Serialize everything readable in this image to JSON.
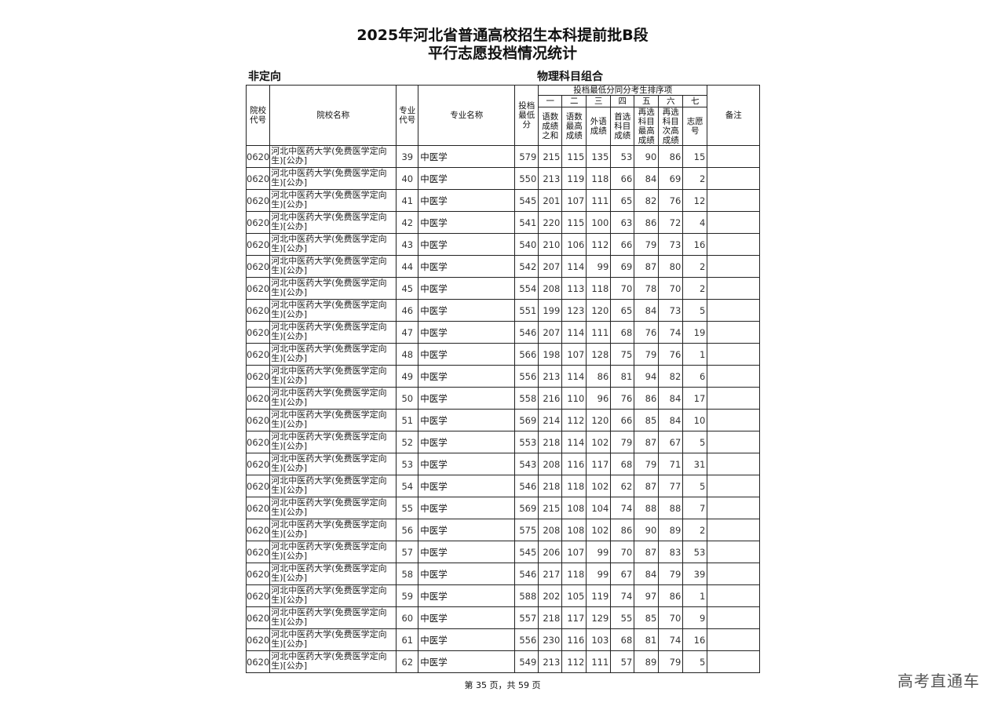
{
  "title_line1": "2025年河北省普通高校招生本科提前批B段",
  "title_line2": "平行志愿投档情况统计",
  "category": "非定向",
  "subject_group": "物理科目组合",
  "headers": {
    "school_code": "院校代号",
    "school_name": "院校名称",
    "major_code": "专业代号",
    "major_name": "专业名称",
    "min_score": "投档最低分",
    "tiebreak_group": "投档最低分同分考生排序项",
    "tiebreak_numbers": [
      "一",
      "二",
      "三",
      "四",
      "五",
      "六",
      "七"
    ],
    "tiebreak_items": [
      "语数成绩之和",
      "语数最高成绩",
      "外语成绩",
      "首选科目成绩",
      "再选科目最高成绩",
      "再选科目次高成绩",
      "志愿号"
    ],
    "remarks": "备注"
  },
  "rows": [
    {
      "school_code": "0620",
      "school_name": "河北中医药大学(免费医学定向生)[公办]",
      "major_code": "39",
      "major_name": "中医学",
      "min_score": "579",
      "t": [
        "215",
        "115",
        "135",
        "53",
        "90",
        "86",
        "15"
      ]
    },
    {
      "school_code": "0620",
      "school_name": "河北中医药大学(免费医学定向生)[公办]",
      "major_code": "40",
      "major_name": "中医学",
      "min_score": "550",
      "t": [
        "213",
        "119",
        "118",
        "66",
        "84",
        "69",
        "2"
      ]
    },
    {
      "school_code": "0620",
      "school_name": "河北中医药大学(免费医学定向生)[公办]",
      "major_code": "41",
      "major_name": "中医学",
      "min_score": "545",
      "t": [
        "201",
        "107",
        "111",
        "65",
        "82",
        "76",
        "12"
      ]
    },
    {
      "school_code": "0620",
      "school_name": "河北中医药大学(免费医学定向生)[公办]",
      "major_code": "42",
      "major_name": "中医学",
      "min_score": "541",
      "t": [
        "220",
        "115",
        "100",
        "63",
        "86",
        "72",
        "4"
      ]
    },
    {
      "school_code": "0620",
      "school_name": "河北中医药大学(免费医学定向生)[公办]",
      "major_code": "43",
      "major_name": "中医学",
      "min_score": "540",
      "t": [
        "210",
        "106",
        "112",
        "66",
        "79",
        "73",
        "16"
      ]
    },
    {
      "school_code": "0620",
      "school_name": "河北中医药大学(免费医学定向生)[公办]",
      "major_code": "44",
      "major_name": "中医学",
      "min_score": "542",
      "t": [
        "207",
        "114",
        "99",
        "69",
        "87",
        "80",
        "2"
      ]
    },
    {
      "school_code": "0620",
      "school_name": "河北中医药大学(免费医学定向生)[公办]",
      "major_code": "45",
      "major_name": "中医学",
      "min_score": "554",
      "t": [
        "208",
        "113",
        "118",
        "70",
        "78",
        "70",
        "2"
      ]
    },
    {
      "school_code": "0620",
      "school_name": "河北中医药大学(免费医学定向生)[公办]",
      "major_code": "46",
      "major_name": "中医学",
      "min_score": "551",
      "t": [
        "199",
        "123",
        "120",
        "65",
        "84",
        "73",
        "5"
      ]
    },
    {
      "school_code": "0620",
      "school_name": "河北中医药大学(免费医学定向生)[公办]",
      "major_code": "47",
      "major_name": "中医学",
      "min_score": "546",
      "t": [
        "207",
        "114",
        "111",
        "68",
        "76",
        "74",
        "19"
      ]
    },
    {
      "school_code": "0620",
      "school_name": "河北中医药大学(免费医学定向生)[公办]",
      "major_code": "48",
      "major_name": "中医学",
      "min_score": "566",
      "t": [
        "198",
        "107",
        "128",
        "75",
        "79",
        "76",
        "1"
      ]
    },
    {
      "school_code": "0620",
      "school_name": "河北中医药大学(免费医学定向生)[公办]",
      "major_code": "49",
      "major_name": "中医学",
      "min_score": "556",
      "t": [
        "213",
        "114",
        "86",
        "81",
        "94",
        "82",
        "6"
      ]
    },
    {
      "school_code": "0620",
      "school_name": "河北中医药大学(免费医学定向生)[公办]",
      "major_code": "50",
      "major_name": "中医学",
      "min_score": "558",
      "t": [
        "216",
        "110",
        "96",
        "76",
        "86",
        "84",
        "17"
      ]
    },
    {
      "school_code": "0620",
      "school_name": "河北中医药大学(免费医学定向生)[公办]",
      "major_code": "51",
      "major_name": "中医学",
      "min_score": "569",
      "t": [
        "214",
        "112",
        "120",
        "66",
        "85",
        "84",
        "10"
      ]
    },
    {
      "school_code": "0620",
      "school_name": "河北中医药大学(免费医学定向生)[公办]",
      "major_code": "52",
      "major_name": "中医学",
      "min_score": "553",
      "t": [
        "218",
        "114",
        "102",
        "79",
        "87",
        "67",
        "5"
      ]
    },
    {
      "school_code": "0620",
      "school_name": "河北中医药大学(免费医学定向生)[公办]",
      "major_code": "53",
      "major_name": "中医学",
      "min_score": "543",
      "t": [
        "208",
        "116",
        "117",
        "68",
        "79",
        "71",
        "31"
      ]
    },
    {
      "school_code": "0620",
      "school_name": "河北中医药大学(免费医学定向生)[公办]",
      "major_code": "54",
      "major_name": "中医学",
      "min_score": "546",
      "t": [
        "218",
        "118",
        "102",
        "62",
        "87",
        "77",
        "5"
      ]
    },
    {
      "school_code": "0620",
      "school_name": "河北中医药大学(免费医学定向生)[公办]",
      "major_code": "55",
      "major_name": "中医学",
      "min_score": "569",
      "t": [
        "215",
        "108",
        "104",
        "74",
        "88",
        "88",
        "7"
      ]
    },
    {
      "school_code": "0620",
      "school_name": "河北中医药大学(免费医学定向生)[公办]",
      "major_code": "56",
      "major_name": "中医学",
      "min_score": "575",
      "t": [
        "208",
        "108",
        "102",
        "86",
        "90",
        "89",
        "2"
      ]
    },
    {
      "school_code": "0620",
      "school_name": "河北中医药大学(免费医学定向生)[公办]",
      "major_code": "57",
      "major_name": "中医学",
      "min_score": "545",
      "t": [
        "206",
        "107",
        "99",
        "70",
        "87",
        "83",
        "53"
      ]
    },
    {
      "school_code": "0620",
      "school_name": "河北中医药大学(免费医学定向生)[公办]",
      "major_code": "58",
      "major_name": "中医学",
      "min_score": "546",
      "t": [
        "217",
        "118",
        "99",
        "67",
        "84",
        "79",
        "39"
      ]
    },
    {
      "school_code": "0620",
      "school_name": "河北中医药大学(免费医学定向生)[公办]",
      "major_code": "59",
      "major_name": "中医学",
      "min_score": "588",
      "t": [
        "202",
        "105",
        "119",
        "74",
        "97",
        "86",
        "1"
      ]
    },
    {
      "school_code": "0620",
      "school_name": "河北中医药大学(免费医学定向生)[公办]",
      "major_code": "60",
      "major_name": "中医学",
      "min_score": "557",
      "t": [
        "218",
        "117",
        "129",
        "55",
        "85",
        "70",
        "9"
      ]
    },
    {
      "school_code": "0620",
      "school_name": "河北中医药大学(免费医学定向生)[公办]",
      "major_code": "61",
      "major_name": "中医学",
      "min_score": "556",
      "t": [
        "230",
        "116",
        "103",
        "68",
        "81",
        "74",
        "16"
      ]
    },
    {
      "school_code": "0620",
      "school_name": "河北中医药大学(免费医学定向生)[公办]",
      "major_code": "62",
      "major_name": "中医学",
      "min_score": "549",
      "t": [
        "213",
        "112",
        "111",
        "57",
        "89",
        "79",
        "5"
      ]
    }
  ],
  "footer": "第 35 页，共 59 页",
  "watermark": "高考直通车"
}
